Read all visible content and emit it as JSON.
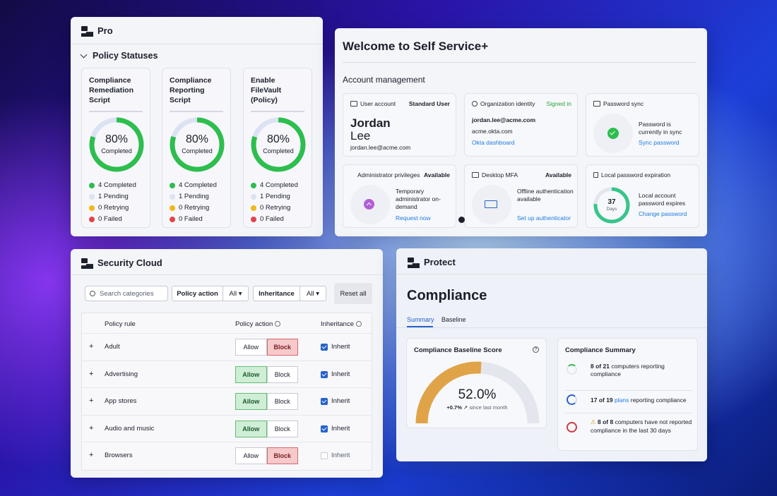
{
  "pro": {
    "brand": "Pro",
    "section": "Policy Statuses",
    "cards": [
      {
        "name": "Compliance Remediation Script",
        "pct": "80%",
        "pct_value": 80,
        "label": "Completed",
        "legend": [
          "4 Completed",
          "1 Pending",
          "0 Retrying",
          "0 Failed"
        ]
      },
      {
        "name": "Compliance Reporting Script",
        "pct": "80%",
        "pct_value": 80,
        "label": "Completed",
        "legend": [
          "4 Completed",
          "1 Pending",
          "0 Retrying",
          "0 Failed"
        ]
      },
      {
        "name": "Enable FileVault (Policy)",
        "pct": "80%",
        "pct_value": 80,
        "label": "Completed",
        "legend": [
          "4 Completed",
          "1 Pending",
          "0 Retrying",
          "0 Failed"
        ]
      }
    ],
    "legend_colors": [
      "#2dbe4e",
      "#dde3f0",
      "#f2b817",
      "#e0444a"
    ]
  },
  "selfservice": {
    "title": "Welcome to Self Service+",
    "section": "Account management",
    "user": {
      "header": "User account",
      "type": "Standard User",
      "first": "Jordan",
      "last": "Lee",
      "email": "jordan.lee@acme.com"
    },
    "org": {
      "header": "Organization identity",
      "status": "Signed in",
      "email": "jordan.lee@acme.com",
      "domain": "acme.okta.com",
      "link": "Okta dashboard"
    },
    "pwsync": {
      "header": "Password sync",
      "text": "Password is currently in sync",
      "link": "Sync password"
    },
    "admin": {
      "header": "Administrator privileges",
      "status": "Available",
      "text": "Temporary administrator on-demand",
      "link": "Request now"
    },
    "mfa": {
      "header": "Desktop MFA",
      "status": "Available",
      "text": "Offline authentication available",
      "link": "Set up authenticator"
    },
    "expire": {
      "header": "Local password expiration",
      "days": "37",
      "days_label": "Days",
      "text": "Local account password expires",
      "link": "Change password"
    }
  },
  "security": {
    "brand": "Security Cloud",
    "search_placeholder": "Search categories",
    "filter1": "Policy action",
    "filter1_val": "All",
    "filter2": "Inheritance",
    "filter2_val": "All",
    "reset": "Reset all",
    "col_rule": "Policy rule",
    "col_action": "Policy action",
    "col_inherit": "Inheritance",
    "rows": [
      {
        "name": "Adult",
        "action": "Block",
        "inherit": true
      },
      {
        "name": "Advertising",
        "action": "Allow",
        "inherit": true
      },
      {
        "name": "App stores",
        "action": "Allow",
        "inherit": true
      },
      {
        "name": "Audio and music",
        "action": "Allow",
        "inherit": true
      },
      {
        "name": "Browsers",
        "action": "Block",
        "inherit": false
      }
    ],
    "allow": "Allow",
    "block": "Block",
    "inherit_label": "Inherit"
  },
  "protect": {
    "brand": "Protect",
    "title": "Compliance",
    "tabs": [
      "Summary",
      "Baseline"
    ],
    "score_title": "Compliance Baseline Score",
    "score": "52.0%",
    "score_value": 52,
    "delta": "+0.7%",
    "delta_note": "since last month",
    "summary_title": "Compliance Summary",
    "items": [
      {
        "pre": "8 of 21",
        "text": "computers reporting compliance"
      },
      {
        "pre": "17 of 19",
        "link": "plans",
        "text": "reporting compliance"
      },
      {
        "pre": "8 of 8",
        "text": "computers have not reported compliance in the last 30 days"
      }
    ]
  }
}
